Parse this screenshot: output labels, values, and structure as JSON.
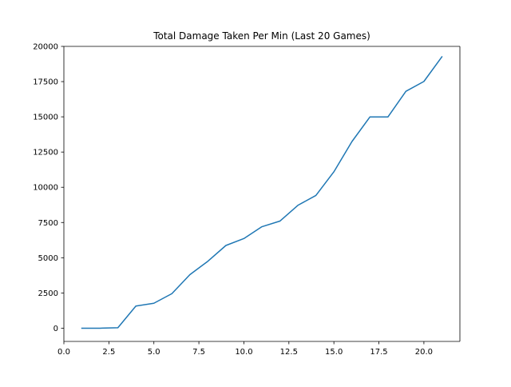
{
  "chart_data": {
    "type": "line",
    "title": "Total Damage Taken Per Min (Last 20 Games)",
    "xlabel": "",
    "ylabel": "",
    "xlim": [
      0.0,
      22.0
    ],
    "ylim": [
      -940,
      20000
    ],
    "x_ticks": [
      0.0,
      2.5,
      5.0,
      7.5,
      10.0,
      12.5,
      15.0,
      17.5,
      20.0
    ],
    "x_tick_labels": [
      "0.0",
      "2.5",
      "5.0",
      "7.5",
      "10.0",
      "12.5",
      "15.0",
      "17.5",
      "20.0"
    ],
    "y_ticks": [
      0,
      2500,
      5000,
      7500,
      10000,
      12500,
      15000,
      17500,
      20000
    ],
    "y_tick_labels": [
      "0",
      "2500",
      "5000",
      "7500",
      "10000",
      "12500",
      "15000",
      "17500",
      "20000"
    ],
    "grid": false,
    "legend": "none",
    "series": [
      {
        "color": "#1f77b4",
        "x": [
          1,
          2,
          3,
          4,
          5,
          6,
          7,
          8,
          9,
          10,
          11,
          12,
          13,
          14,
          15,
          16,
          17,
          18,
          19,
          20,
          21
        ],
        "y": [
          0,
          0,
          30,
          1570,
          1770,
          2450,
          3800,
          4750,
          5870,
          6360,
          7200,
          7600,
          8720,
          9420,
          11100,
          13240,
          14990,
          14990,
          16810,
          17510,
          19260
        ]
      }
    ]
  }
}
